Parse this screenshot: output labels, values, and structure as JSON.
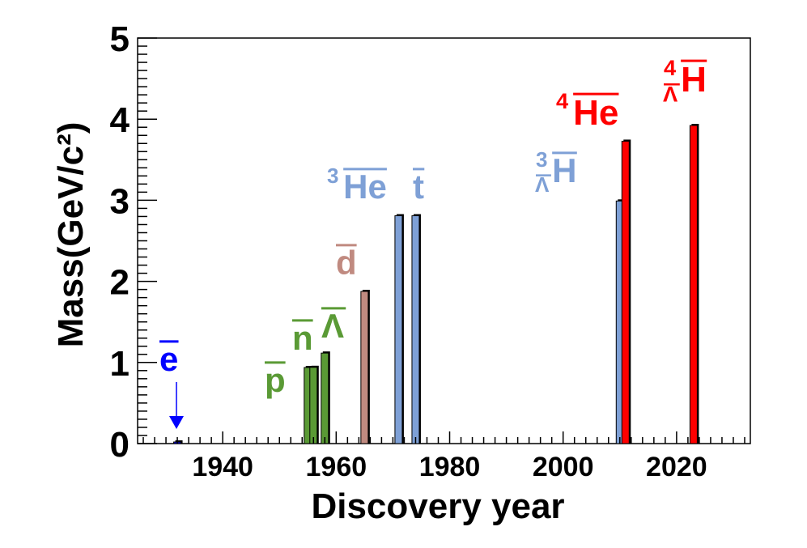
{
  "chart_data": {
    "type": "bar",
    "xlabel": "Discovery year",
    "ylabel": "Mass(GeV/c²)",
    "xlim": [
      1925,
      2033
    ],
    "ylim": [
      0,
      5
    ],
    "xticks": [
      1940,
      1960,
      1980,
      2000,
      2020
    ],
    "yticks": [
      0,
      1,
      2,
      3,
      4,
      5
    ],
    "grid": false,
    "colors": {
      "lepton": "#0000ff",
      "baryon": "#5a9a35",
      "deuteron": "#c08a80",
      "nucleus": "#7ea0d6",
      "heavy": "#ff0000"
    },
    "bars": [
      {
        "year": 1932,
        "mass": 0.000511,
        "group": "lepton"
      },
      {
        "year": 1955,
        "mass": 0.938,
        "group": "baryon"
      },
      {
        "year": 1956,
        "mass": 0.94,
        "group": "baryon"
      },
      {
        "year": 1958,
        "mass": 1.116,
        "group": "baryon"
      },
      {
        "year": 1965,
        "mass": 1.876,
        "group": "deuteron"
      },
      {
        "year": 1971,
        "mass": 2.809,
        "group": "nucleus"
      },
      {
        "year": 1974,
        "mass": 2.809,
        "group": "nucleus"
      },
      {
        "year": 2010,
        "mass": 2.991,
        "group": "nucleus"
      },
      {
        "year": 2011,
        "mass": 3.728,
        "group": "heavy"
      },
      {
        "year": 2023,
        "mass": 3.922,
        "group": "heavy"
      }
    ],
    "labels": [
      {
        "id": "ebar",
        "group": "lepton",
        "main": "e",
        "bar": true
      },
      {
        "id": "pbar",
        "group": "baryon",
        "main": "p",
        "bar": true
      },
      {
        "id": "nbar",
        "group": "baryon",
        "main": "n",
        "bar": true
      },
      {
        "id": "lambdabar",
        "group": "baryon",
        "main": "Λ",
        "bar": true
      },
      {
        "id": "dbar",
        "group": "deuteron",
        "main": "d",
        "bar": true
      },
      {
        "id": "he3bar",
        "group": "nucleus",
        "sup": "3",
        "main": "He",
        "bar": true
      },
      {
        "id": "tbar",
        "group": "nucleus",
        "main": "t",
        "bar": true
      },
      {
        "id": "h3lbar",
        "group": "nucleus",
        "sup": "3",
        "sub": "Λ",
        "main": "H",
        "bar": true
      },
      {
        "id": "he4bar",
        "group": "heavy",
        "sup": "4",
        "main": "He",
        "bar": true
      },
      {
        "id": "h4lbar",
        "group": "heavy",
        "sup": "4",
        "sub": "Λ",
        "main": "H",
        "bar": true
      }
    ]
  }
}
